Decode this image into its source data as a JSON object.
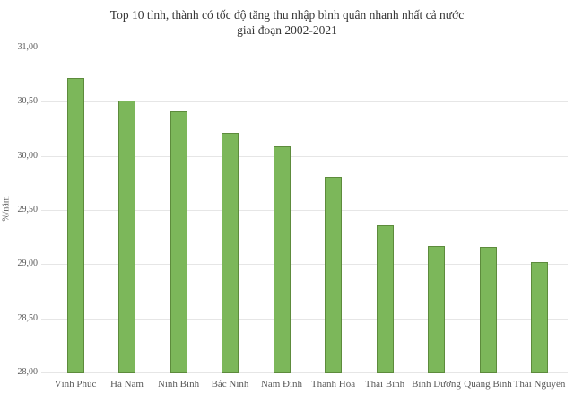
{
  "chart_data": {
    "type": "bar",
    "title_line1": "Top 10 tỉnh, thành có tốc độ tăng thu nhập bình quân nhanh nhất cả nước",
    "title_line2": "giai đoạn 2002-2021",
    "ylabel": "%/năm",
    "xlabel": "",
    "categories": [
      "Vĩnh Phúc",
      "Hà Nam",
      "Ninh Bình",
      "Bắc Ninh",
      "Nam Định",
      "Thanh Hóa",
      "Thái Bình",
      "Bình Dương",
      "Quảng Bình",
      "Thái Nguyên"
    ],
    "values": [
      30.72,
      30.51,
      30.41,
      30.21,
      30.09,
      29.81,
      29.36,
      29.17,
      29.16,
      29.02
    ],
    "ylim": [
      28,
      31
    ],
    "yticks": [
      {
        "value": 31.0,
        "label": "31,00"
      },
      {
        "value": 30.5,
        "label": "30,50"
      },
      {
        "value": 30.0,
        "label": "30,00"
      },
      {
        "value": 29.5,
        "label": "29,50"
      },
      {
        "value": 29.0,
        "label": "29,00"
      },
      {
        "value": 28.5,
        "label": "28,50"
      },
      {
        "value": 28.0,
        "label": "28,00"
      }
    ],
    "grid": true,
    "legend": "none",
    "bar_fill_color": "#7CB75A",
    "bar_border_color": "#5D8B3C",
    "gridline_color": "#E6E6E6",
    "text_color": "#595959",
    "title_color": "#333333"
  }
}
